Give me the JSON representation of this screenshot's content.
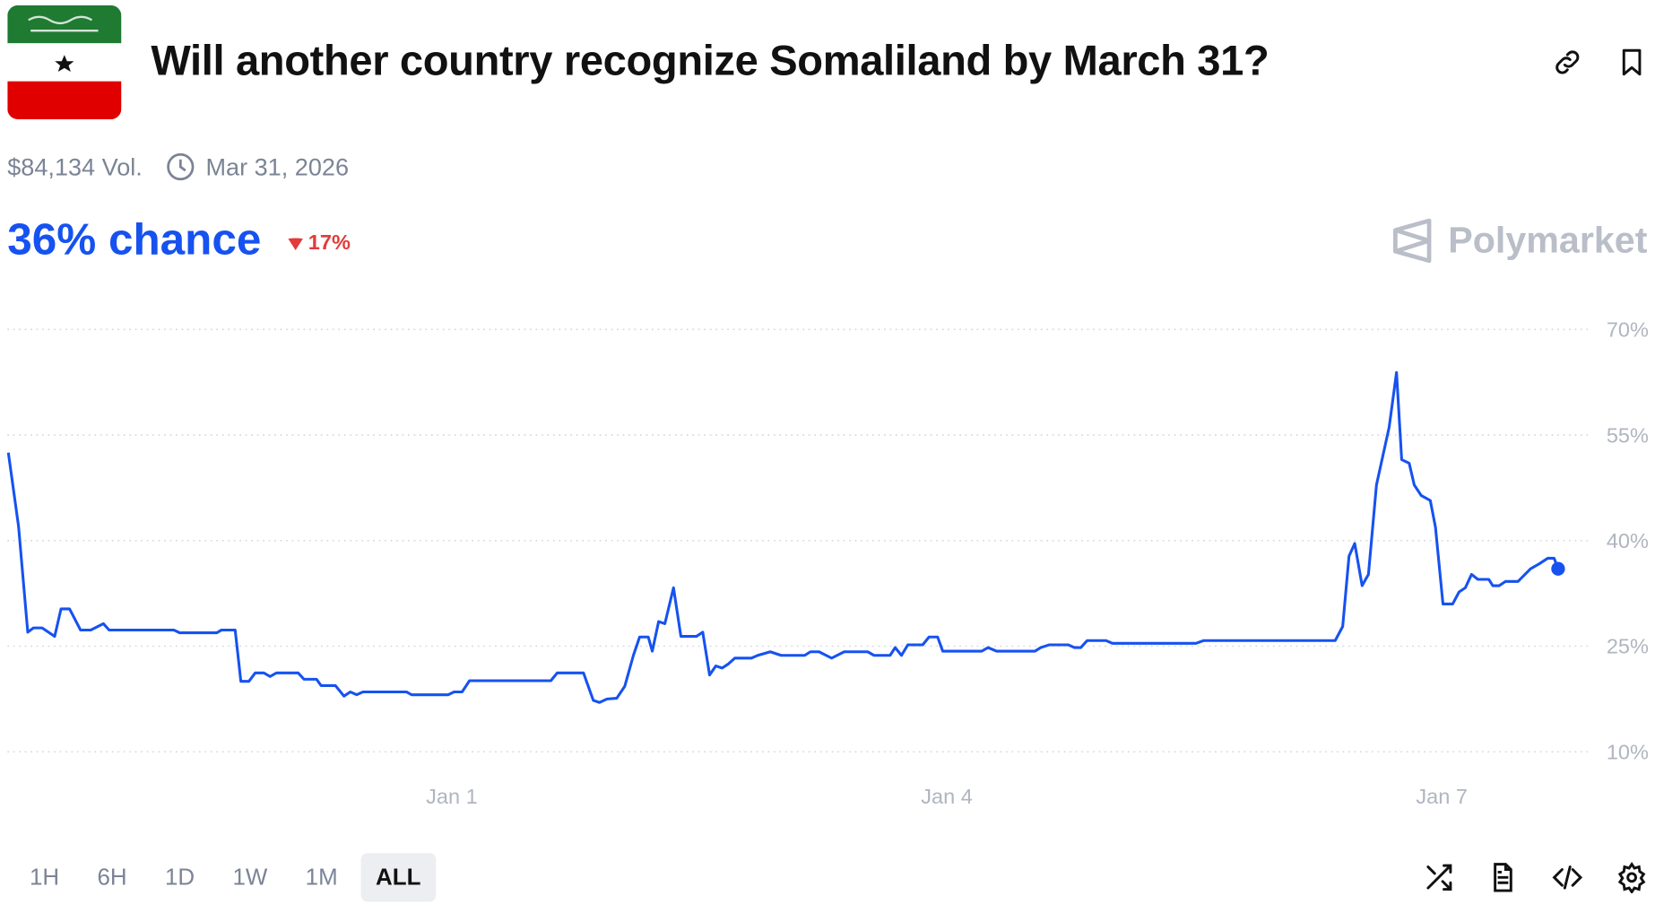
{
  "header": {
    "title": "Will another country recognize Somaliland by March 31?",
    "flag_colors": {
      "top": "#1f7a32",
      "middle": "#ffffff",
      "bottom": "#e00000"
    },
    "icons": [
      "link-icon",
      "bookmark-icon"
    ]
  },
  "meta": {
    "volume": "$84,134 Vol.",
    "end_date": "Mar 31, 2026"
  },
  "outcome": {
    "chance": "36% chance",
    "change": "17%",
    "change_direction": "down"
  },
  "brand": {
    "name": "Polymarket"
  },
  "colors": {
    "accent": "#1652f0",
    "negative": "#e23b3b",
    "grid": "#d5d8de"
  },
  "range_buttons": [
    "1H",
    "6H",
    "1D",
    "1W",
    "1M",
    "ALL"
  ],
  "active_range": "ALL",
  "footer_icons": [
    "shuffle-icon",
    "document-icon",
    "code-icon",
    "settings-icon"
  ],
  "chart_data": {
    "type": "line",
    "title": "",
    "xlabel": "",
    "ylabel": "",
    "ylim": [
      10,
      70
    ],
    "yticks": [
      "70%",
      "55%",
      "40%",
      "25%",
      "10%"
    ],
    "ytick_values": [
      70,
      55,
      40,
      25,
      10
    ],
    "xticks": [
      "Jan 1",
      "Jan 4",
      "Jan 7"
    ],
    "xtick_values": [
      "2026-01-01T00:00",
      "2026-01-04T00:00",
      "2026-01-07T00:00"
    ],
    "grid": "horizontal dotted",
    "y_axis_side": "right",
    "series": [
      {
        "color": "#1652f0",
        "points": [
          [
            "2025-12-29T07:30",
            52.5
          ],
          [
            "2025-12-29T09:00",
            42
          ],
          [
            "2025-12-29T10:20",
            27
          ],
          [
            "2025-12-29T11:10",
            27.6
          ],
          [
            "2025-12-29T12:25",
            27.6
          ],
          [
            "2025-12-29T14:15",
            26.4
          ],
          [
            "2025-12-29T15:10",
            30.3
          ],
          [
            "2025-12-29T16:25",
            30.3
          ],
          [
            "2025-12-29T18:00",
            27.3
          ],
          [
            "2025-12-29T19:30",
            27.3
          ],
          [
            "2025-12-29T21:20",
            28.2
          ],
          [
            "2025-12-29T22:10",
            27.3
          ],
          [
            "2025-12-30T07:35",
            27.3
          ],
          [
            "2025-12-30T08:25",
            26.9
          ],
          [
            "2025-12-30T13:50",
            26.9
          ],
          [
            "2025-12-30T14:30",
            27.3
          ],
          [
            "2025-12-30T16:30",
            27.3
          ],
          [
            "2025-12-30T17:20",
            20.0
          ],
          [
            "2025-12-30T18:30",
            20.0
          ],
          [
            "2025-12-30T19:25",
            21.2
          ],
          [
            "2025-12-30T20:40",
            21.2
          ],
          [
            "2025-12-30T21:35",
            20.7
          ],
          [
            "2025-12-30T22:30",
            21.2
          ],
          [
            "2025-12-31T01:40",
            21.2
          ],
          [
            "2025-12-31T02:30",
            20.3
          ],
          [
            "2025-12-31T04:20",
            20.3
          ],
          [
            "2025-12-31T05:00",
            19.4
          ],
          [
            "2025-12-31T07:05",
            19.4
          ],
          [
            "2025-12-31T08:20",
            17.9
          ],
          [
            "2025-12-31T09:15",
            18.5
          ],
          [
            "2025-12-31T10:10",
            18.1
          ],
          [
            "2025-12-31T11:05",
            18.5
          ],
          [
            "2025-12-31T17:25",
            18.5
          ],
          [
            "2025-12-31T18:10",
            18.1
          ],
          [
            "2025-12-31T23:30",
            18.1
          ],
          [
            "2026-01-01T00:20",
            18.5
          ],
          [
            "2026-01-01T01:30",
            18.5
          ],
          [
            "2026-01-01T02:35",
            20.1
          ],
          [
            "2026-01-01T14:25",
            20.1
          ],
          [
            "2026-01-01T15:20",
            21.2
          ],
          [
            "2026-01-01T19:10",
            21.2
          ],
          [
            "2026-01-01T20:35",
            17.3
          ],
          [
            "2026-01-01T21:30",
            17.0
          ],
          [
            "2026-01-01T22:35",
            17.5
          ],
          [
            "2026-01-02T00:00",
            17.6
          ],
          [
            "2026-01-02T01:10",
            19.3
          ],
          [
            "2026-01-02T02:25",
            23.7
          ],
          [
            "2026-01-02T03:20",
            26.3
          ],
          [
            "2026-01-02T04:35",
            26.3
          ],
          [
            "2026-01-02T05:10",
            24.3
          ],
          [
            "2026-01-02T06:05",
            28.5
          ],
          [
            "2026-01-02T07:00",
            28.2
          ],
          [
            "2026-01-02T08:15",
            33.3
          ],
          [
            "2026-01-02T09:20",
            26.4
          ],
          [
            "2026-01-02T11:35",
            26.4
          ],
          [
            "2026-01-02T12:30",
            27.0
          ],
          [
            "2026-01-02T13:30",
            20.9
          ],
          [
            "2026-01-02T14:25",
            22.2
          ],
          [
            "2026-01-02T15:20",
            21.9
          ],
          [
            "2026-01-02T16:15",
            22.5
          ],
          [
            "2026-01-02T17:10",
            23.3
          ],
          [
            "2026-01-02T19:35",
            23.3
          ],
          [
            "2026-01-02T20:30",
            23.7
          ],
          [
            "2026-01-02T22:20",
            24.2
          ],
          [
            "2026-01-02T23:55",
            23.7
          ],
          [
            "2026-01-03T03:20",
            23.7
          ],
          [
            "2026-01-03T04:10",
            24.2
          ],
          [
            "2026-01-03T05:25",
            24.2
          ],
          [
            "2026-01-03T07:15",
            23.3
          ],
          [
            "2026-01-03T09:05",
            24.2
          ],
          [
            "2026-01-03T12:30",
            24.2
          ],
          [
            "2026-01-03T13:25",
            23.7
          ],
          [
            "2026-01-03T15:45",
            23.7
          ],
          [
            "2026-01-03T16:30",
            24.8
          ],
          [
            "2026-01-03T17:25",
            23.7
          ],
          [
            "2026-01-03T18:20",
            25.2
          ],
          [
            "2026-01-03T20:30",
            25.2
          ],
          [
            "2026-01-03T21:25",
            26.3
          ],
          [
            "2026-01-03T22:40",
            26.3
          ],
          [
            "2026-01-03T23:25",
            24.3
          ],
          [
            "2026-01-04T05:05",
            24.3
          ],
          [
            "2026-01-04T06:00",
            24.8
          ],
          [
            "2026-01-04T07:15",
            24.3
          ],
          [
            "2026-01-04T12:50",
            24.3
          ],
          [
            "2026-01-04T13:40",
            24.8
          ],
          [
            "2026-01-04T14:55",
            25.2
          ],
          [
            "2026-01-04T17:40",
            25.2
          ],
          [
            "2026-01-04T18:35",
            24.8
          ],
          [
            "2026-01-04T19:30",
            24.8
          ],
          [
            "2026-01-04T20:25",
            25.8
          ],
          [
            "2026-01-04T23:10",
            25.8
          ],
          [
            "2026-01-05T00:05",
            25.4
          ],
          [
            "2026-01-05T12:15",
            25.4
          ],
          [
            "2026-01-05T13:20",
            25.8
          ],
          [
            "2026-01-06T08:30",
            25.8
          ],
          [
            "2026-01-06T09:35",
            27.8
          ],
          [
            "2026-01-06T10:30",
            37.8
          ],
          [
            "2026-01-06T11:20",
            39.6
          ],
          [
            "2026-01-06T12:25",
            33.6
          ],
          [
            "2026-01-06T13:20",
            35.2
          ],
          [
            "2026-01-06T14:30",
            47.9
          ],
          [
            "2026-01-06T16:20",
            56.1
          ],
          [
            "2026-01-06T17:25",
            63.9
          ],
          [
            "2026-01-06T18:10",
            51.5
          ],
          [
            "2026-01-06T19:15",
            51.0
          ],
          [
            "2026-01-06T20:00",
            47.9
          ],
          [
            "2026-01-06T21:00",
            46.4
          ],
          [
            "2026-01-06T22:20",
            45.7
          ],
          [
            "2026-01-06T23:05",
            41.9
          ],
          [
            "2026-01-07T00:10",
            31.0
          ],
          [
            "2026-01-07T01:35",
            31.0
          ],
          [
            "2026-01-07T02:30",
            32.7
          ],
          [
            "2026-01-07T03:25",
            33.3
          ],
          [
            "2026-01-07T04:20",
            35.2
          ],
          [
            "2026-01-07T05:15",
            34.5
          ],
          [
            "2026-01-07T06:50",
            34.5
          ],
          [
            "2026-01-07T07:25",
            33.6
          ],
          [
            "2026-01-07T08:20",
            33.6
          ],
          [
            "2026-01-07T09:15",
            34.2
          ],
          [
            "2026-01-07T11:05",
            34.2
          ],
          [
            "2026-01-07T12:55",
            36.0
          ],
          [
            "2026-01-07T14:10",
            36.7
          ],
          [
            "2026-01-07T15:25",
            37.5
          ],
          [
            "2026-01-07T16:20",
            37.5
          ],
          [
            "2026-01-07T16:55",
            36.0
          ]
        ]
      }
    ]
  }
}
